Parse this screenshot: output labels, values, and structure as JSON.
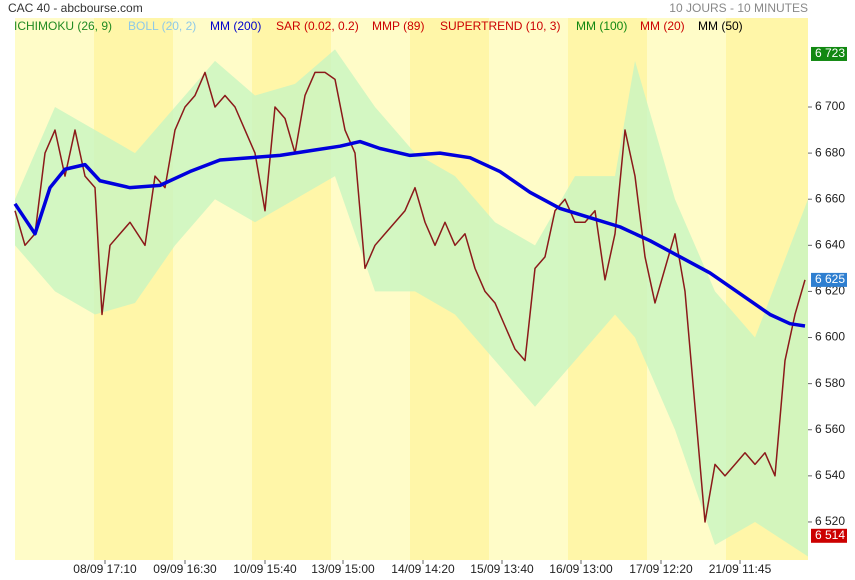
{
  "chart_data": {
    "type": "line",
    "title": "CAC 40 - abcbourse.com",
    "period": "10 JOURS - 10 MINUTES",
    "indicators": [
      {
        "name": "ICHIMOKU (26, 9)",
        "color": "#228b22"
      },
      {
        "name": "BOLL (20, 2)",
        "color": "#8ec9e8"
      },
      {
        "name": "MM (200)",
        "color": "#0000cc"
      },
      {
        "name": "SAR (0.02, 0.2)",
        "color": "#cc0000"
      },
      {
        "name": "MMP (89)",
        "color": "#cc0000"
      },
      {
        "name": "SUPERTREND (10, 3)",
        "color": "#cc0000"
      },
      {
        "name": "MM (100)",
        "color": "#118811"
      },
      {
        "name": "MM (20)",
        "color": "#cc0000"
      },
      {
        "name": "MM (50)",
        "color": "#000000"
      }
    ],
    "xlim": [
      0,
      793
    ],
    "xticks": [
      {
        "value": 90,
        "label": "08/09 17:10"
      },
      {
        "value": 170,
        "label": "09/09 16:30"
      },
      {
        "value": 250,
        "label": "10/09 15:40"
      },
      {
        "value": 328,
        "label": "13/09 15:00"
      },
      {
        "value": 408,
        "label": "14/09 14:20"
      },
      {
        "value": 487,
        "label": "15/09 13:40"
      },
      {
        "value": 566,
        "label": "16/09 13:00"
      },
      {
        "value": 646,
        "label": "17/09 12:20"
      },
      {
        "value": 725,
        "label": "21/09 11:45"
      }
    ],
    "ylim": [
      6503.5,
      6738.6
    ],
    "yticks": [
      {
        "value": 6520,
        "label": "6 520"
      },
      {
        "value": 6540,
        "label": "6 540"
      },
      {
        "value": 6560,
        "label": "6 560"
      },
      {
        "value": 6580,
        "label": "6 580"
      },
      {
        "value": 6600,
        "label": "6 600"
      },
      {
        "value": 6620,
        "label": "6 620"
      },
      {
        "value": 6640,
        "label": "6 640"
      },
      {
        "value": 6660,
        "label": "6 660"
      },
      {
        "value": 6680,
        "label": "6 680"
      },
      {
        "value": 6700,
        "label": "6 700"
      }
    ],
    "price_labels": [
      {
        "value": 6723,
        "label": "6 723",
        "color": "#118811"
      },
      {
        "value": 6625,
        "label": "6 625",
        "color": "#2f7fd0"
      },
      {
        "value": 6514,
        "label": "6 514",
        "color": "#cc0000"
      }
    ],
    "band": {
      "name": "BOLL (20, 2)",
      "color": "#c8f5c0",
      "x": [
        0,
        40,
        80,
        120,
        160,
        200,
        240,
        280,
        320,
        360,
        400,
        440,
        480,
        520,
        560,
        600,
        620,
        660,
        700,
        740,
        793
      ],
      "upper": [
        6660,
        6700,
        6690,
        6680,
        6700,
        6720,
        6705,
        6710,
        6725,
        6700,
        6680,
        6670,
        6650,
        6640,
        6670,
        6670,
        6720,
        6660,
        6620,
        6600,
        6660
      ],
      "lower": [
        6640,
        6620,
        6610,
        6615,
        6640,
        6660,
        6650,
        6660,
        6670,
        6620,
        6620,
        6610,
        6590,
        6570,
        6590,
        6610,
        6600,
        6560,
        6510,
        6520,
        6505
      ]
    },
    "series": [
      {
        "name": "CAC 40",
        "color": "#8b1a1a",
        "x": [
          0,
          10,
          20,
          30,
          40,
          50,
          60,
          70,
          80,
          87,
          95,
          105,
          115,
          130,
          140,
          150,
          160,
          170,
          180,
          190,
          200,
          210,
          220,
          230,
          240,
          250,
          260,
          270,
          280,
          290,
          300,
          310,
          320,
          330,
          340,
          350,
          360,
          370,
          380,
          390,
          400,
          410,
          420,
          430,
          440,
          450,
          460,
          470,
          480,
          490,
          500,
          510,
          520,
          530,
          540,
          550,
          560,
          570,
          580,
          590,
          600,
          610,
          620,
          630,
          640,
          650,
          660,
          670,
          680,
          690,
          700,
          710,
          720,
          730,
          740,
          750,
          760,
          770,
          780,
          790
        ],
        "values": [
          6655,
          6640,
          6645,
          6680,
          6690,
          6670,
          6690,
          6670,
          6665,
          6610,
          6640,
          6645,
          6650,
          6640,
          6670,
          6665,
          6690,
          6700,
          6705,
          6715,
          6700,
          6705,
          6700,
          6690,
          6680,
          6655,
          6700,
          6695,
          6680,
          6705,
          6715,
          6715,
          6712,
          6690,
          6680,
          6630,
          6640,
          6645,
          6650,
          6655,
          6665,
          6650,
          6640,
          6650,
          6640,
          6645,
          6630,
          6620,
          6615,
          6605,
          6595,
          6590,
          6630,
          6635,
          6655,
          6660,
          6650,
          6650,
          6655,
          6625,
          6645,
          6690,
          6670,
          6635,
          6615,
          6630,
          6645,
          6620,
          6570,
          6520,
          6545,
          6540,
          6545,
          6550,
          6545,
          6550,
          6540,
          6590,
          6610,
          6625
        ]
      },
      {
        "name": "MM (200)",
        "color": "#0000dd",
        "x": [
          0,
          20,
          35,
          50,
          70,
          85,
          115,
          145,
          175,
          205,
          235,
          265,
          295,
          325,
          345,
          365,
          395,
          425,
          455,
          485,
          515,
          545,
          575,
          605,
          635,
          665,
          695,
          725,
          755,
          775,
          790
        ],
        "values": [
          6658,
          6645,
          6665,
          6673,
          6675,
          6668,
          6665,
          6666,
          6672,
          6677,
          6678,
          6679,
          6681,
          6683,
          6685,
          6682,
          6679,
          6680,
          6678,
          6672,
          6663,
          6656,
          6652,
          6648,
          6642,
          6635,
          6628,
          6619,
          6610,
          6606,
          6605
        ]
      }
    ]
  }
}
